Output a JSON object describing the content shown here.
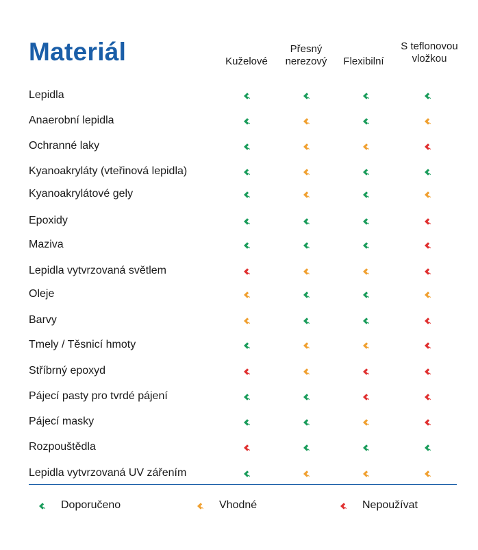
{
  "title": "Materiál",
  "colors": {
    "recommended": "#1a9c5b",
    "suitable": "#f0a030",
    "not_used": "#e03030",
    "title": "#1a5ea8"
  },
  "icons": {
    "recommended": "recommended-icon",
    "suitable": "suitable-icon",
    "not_used": "not-used-icon"
  },
  "columns": [
    {
      "line1": "",
      "line2": "Kuželové"
    },
    {
      "line1": "Přesný",
      "line2": "nerezový"
    },
    {
      "line1": "",
      "line2": "Flexibilní"
    },
    {
      "line1": "S teflonovou",
      "line2": "vložkou"
    }
  ],
  "rows": [
    {
      "label": "Lepidla",
      "ratings": [
        "recommended",
        "recommended",
        "recommended",
        "recommended"
      ]
    },
    {
      "label": "Anaerobní lepidla",
      "ratings": [
        "recommended",
        "suitable",
        "recommended",
        "suitable"
      ]
    },
    {
      "label": "Ochranné laky",
      "ratings": [
        "recommended",
        "suitable",
        "suitable",
        "not_used"
      ]
    },
    {
      "label": "Kyanoakryláty (vteřinová lepidla)",
      "ratings": [
        "recommended",
        "suitable",
        "recommended",
        "recommended"
      ]
    },
    {
      "label": "Kyanoakrylátové gely",
      "ratings": [
        "recommended",
        "suitable",
        "recommended",
        "suitable"
      ]
    },
    {
      "label": "Epoxidy",
      "ratings": [
        "recommended",
        "recommended",
        "recommended",
        "not_used"
      ]
    },
    {
      "label": "Maziva",
      "ratings": [
        "recommended",
        "recommended",
        "recommended",
        "not_used"
      ]
    },
    {
      "label": "Lepidla vytvrzovaná světlem",
      "ratings": [
        "not_used",
        "suitable",
        "suitable",
        "not_used"
      ]
    },
    {
      "label": "Oleje",
      "ratings": [
        "suitable",
        "recommended",
        "recommended",
        "suitable"
      ]
    },
    {
      "label": "Barvy",
      "ratings": [
        "suitable",
        "recommended",
        "recommended",
        "not_used"
      ]
    },
    {
      "label": "Tmely / Těsnicí hmoty",
      "ratings": [
        "recommended",
        "suitable",
        "suitable",
        "not_used"
      ]
    },
    {
      "label": "Stříbrný epoxyd",
      "ratings": [
        "not_used",
        "suitable",
        "not_used",
        "not_used"
      ]
    },
    {
      "label": "Pájecí pasty pro tvrdé pájení",
      "ratings": [
        "recommended",
        "recommended",
        "not_used",
        "not_used"
      ]
    },
    {
      "label": "Pájecí masky",
      "ratings": [
        "recommended",
        "recommended",
        "suitable",
        "not_used"
      ]
    },
    {
      "label": "Rozpouštědla",
      "ratings": [
        "not_used",
        "recommended",
        "recommended",
        "recommended"
      ]
    },
    {
      "label": "Lepidla vytvrzovaná UV zářením",
      "ratings": [
        "recommended",
        "suitable",
        "suitable",
        "suitable"
      ]
    }
  ],
  "legend": [
    {
      "key": "recommended",
      "label": "Doporučeno"
    },
    {
      "key": "suitable",
      "label": "Vhodné"
    },
    {
      "key": "not_used",
      "label": "Nepoužívat"
    }
  ]
}
